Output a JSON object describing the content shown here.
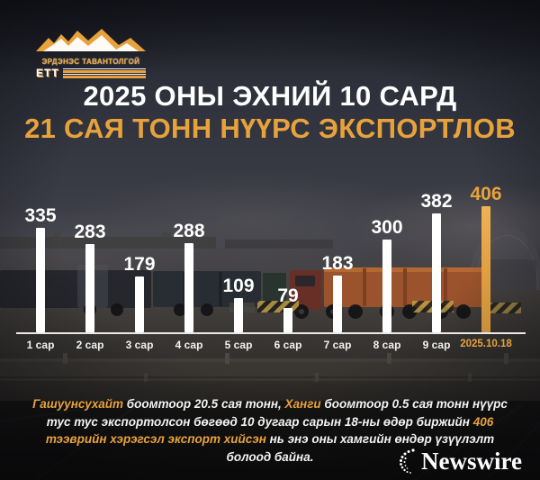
{
  "brand": {
    "logo_text": "ЭРДЭНЭС ТАВАНТОЛГОЙ",
    "logo_abbr": "ЕТТ"
  },
  "title": {
    "line1": "2025 ОНЫ ЭХНИЙ 10 САРД",
    "line2": "21 САЯ ТОНН НҮҮРС ЭКСПОРТЛОВ"
  },
  "colors": {
    "accent": "#E8A23C",
    "bar": "#FFFFFF",
    "highlight_bar": "#E2A243"
  },
  "chart_data": {
    "type": "bar",
    "title": "",
    "categories": [
      "1 сар",
      "2 сар",
      "3 сар",
      "4 сар",
      "5 сар",
      "6 сар",
      "7 сар",
      "8 сар",
      "9 сар",
      "2025.10.18"
    ],
    "values": [
      335,
      283,
      179,
      288,
      109,
      79,
      183,
      300,
      382,
      406
    ],
    "highlight_index": 9,
    "ylim": [
      0,
      406
    ],
    "grid": false,
    "legend": false,
    "value_labels": true
  },
  "footer": {
    "segments": [
      {
        "text": "Гашуунсухайт",
        "highlight": true
      },
      {
        "text": " боомтоор 20.5 сая тонн, ",
        "highlight": false
      },
      {
        "text": "Ханги",
        "highlight": true
      },
      {
        "text": " боомтоор 0.5 сая тонн нүүрс тус тус экспортолсон бөгөөд 10 дугаар сарын 18-ны өдөр биржийн ",
        "highlight": false
      },
      {
        "text": "406 тээврийн хэрэгсэл экспорт хийсэн",
        "highlight": true
      },
      {
        "text": " нь энэ оны хамгийн өндөр үзүүлэлт болоод байна.",
        "highlight": false
      }
    ]
  },
  "watermark": {
    "text": "Newswire"
  }
}
